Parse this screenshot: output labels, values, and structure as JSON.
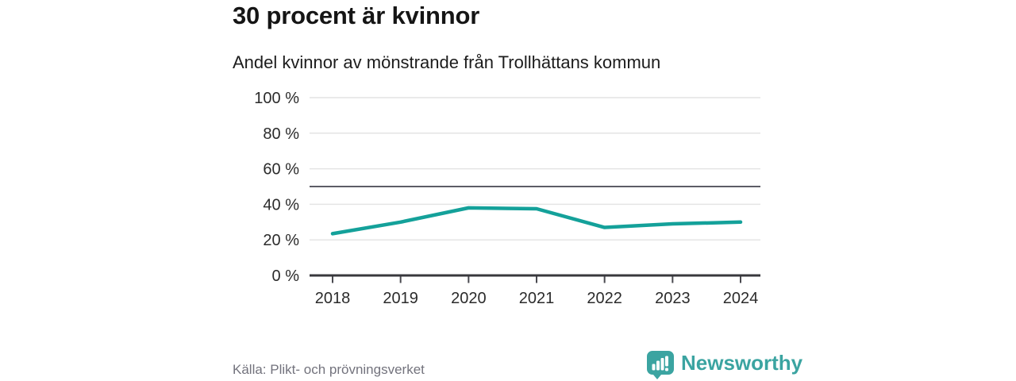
{
  "header": {
    "title": "30 procent är kvinnor",
    "subtitle": "Andel kvinnor av mönstrande från Trollhättans kommun"
  },
  "chart_data": {
    "type": "line",
    "title": "30 procent är kvinnor",
    "subtitle": "Andel kvinnor av mönstrande från Trollhättans kommun",
    "categories": [
      "2018",
      "2019",
      "2020",
      "2021",
      "2022",
      "2023",
      "2024"
    ],
    "series": [
      {
        "name": "Andel kvinnor av mönstrande",
        "values": [
          23.5,
          30,
          38,
          37.5,
          27,
          29,
          30
        ]
      }
    ],
    "unit": "%",
    "ylim": [
      0,
      100
    ],
    "yticks": [
      0,
      20,
      40,
      60,
      80,
      100
    ],
    "ytick_format": "{v} %",
    "reference_line": 50,
    "grid": true,
    "legend": "none",
    "line_color": "#14a19a"
  },
  "footer": {
    "source": "Källa: Plikt- och prövningsverket",
    "brand": "Newsworthy"
  },
  "colors": {
    "accent": "#14a19a",
    "brand_teal": "#3ba4a1",
    "grid_gray": "#e4e4e4",
    "reference_gray": "#5c5c66",
    "axis_dark": "#38383d",
    "text_dark": "#151515",
    "text_muted": "#73737d"
  }
}
